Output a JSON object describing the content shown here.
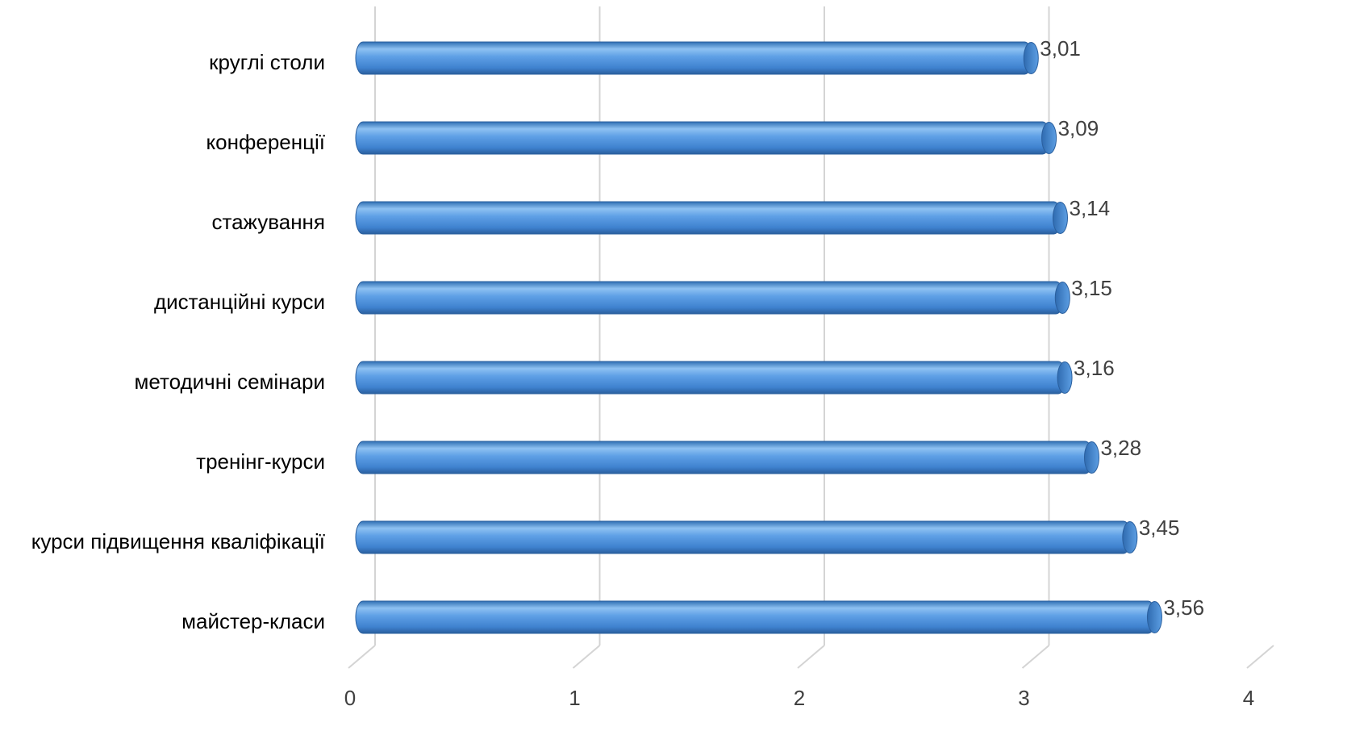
{
  "chart_data": {
    "type": "bar",
    "orientation": "horizontal",
    "style": "3d-cylinder",
    "categories": [
      "круглі столи",
      "конференції",
      "стажування",
      "дистанційні курси",
      "методичні семінари",
      "тренінг-курси",
      "курси підвищення кваліфікації",
      "майстер-класи"
    ],
    "values": [
      3.01,
      3.09,
      3.14,
      3.15,
      3.16,
      3.28,
      3.45,
      3.56
    ],
    "value_labels": [
      "3,01",
      "3,09",
      "3,14",
      "3,15",
      "3,16",
      "3,28",
      "3,45",
      "3,56"
    ],
    "xlim": [
      0,
      4
    ],
    "x_ticks": [
      "0",
      "1",
      "2",
      "3",
      "4"
    ],
    "grid": true,
    "colors": {
      "bar": "#4a8edb",
      "bar_light": "#8ec1f2",
      "bar_dark": "#2a66a8",
      "grid": "#d4d4d4"
    }
  }
}
